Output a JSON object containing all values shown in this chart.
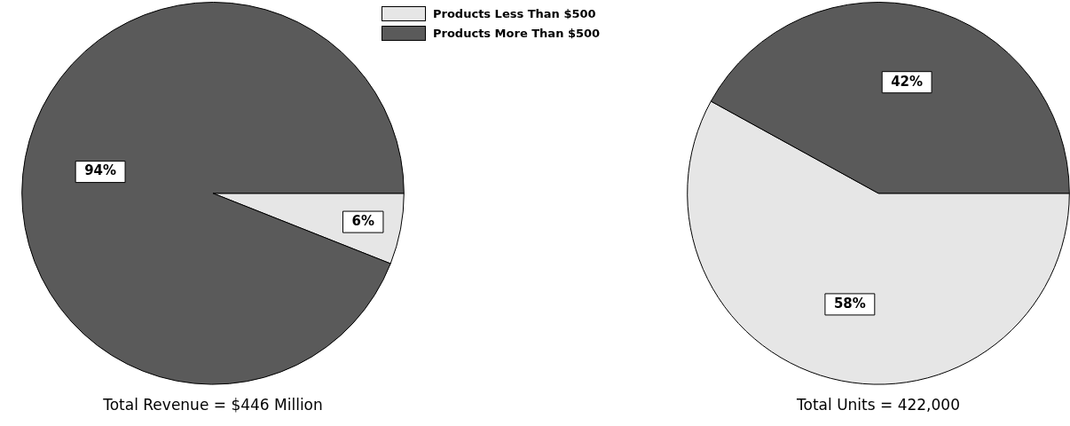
{
  "chart_data": [
    {
      "type": "pie",
      "title": "Total Revenue = $446 Million",
      "categories": [
        "Products Less Than $500",
        "Products More Than $500"
      ],
      "values": [
        6,
        94
      ],
      "value_labels": [
        "6%",
        "94%"
      ],
      "colors": [
        "#e6e6e6",
        "#5a5a5a"
      ],
      "legend": "top right"
    },
    {
      "type": "pie",
      "title": "Total Units = 422,000",
      "categories": [
        null,
        null
      ],
      "values": [
        58,
        42
      ],
      "value_labels": [
        "58%",
        "42%"
      ],
      "colors": [
        "#e6e6e6",
        "#5a5a5a"
      ]
    }
  ]
}
